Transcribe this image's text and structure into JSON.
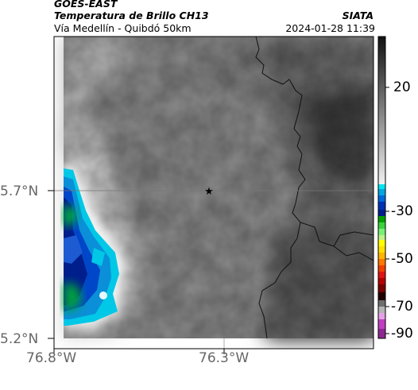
{
  "header": {
    "satellite": "GOES-EAST",
    "product": "Temperatura de Brillo CH13",
    "region": "Vía Medellín - Quibdó 50km",
    "org": "SIATA",
    "datetime": "2024-01-28 11:39"
  },
  "map": {
    "marker": "star-icon",
    "lat_labels": [
      "5.7°N",
      "5.2°N"
    ],
    "lon_labels": [
      "76.8°W",
      "76.3°W"
    ]
  },
  "colorbar": {
    "ticks": [
      "20",
      "-30",
      "-50",
      "-70",
      "-90"
    ]
  },
  "colors": {
    "cloud_gray": "#8c8c8c",
    "warm_land": "#5a5a5a",
    "cold_white": "#ffffff",
    "cyan": "#00c8e6",
    "blue": "#0046c8",
    "navy": "#001e8c",
    "green": "#00b43c",
    "yellow": "#ffff00",
    "red": "#e01414",
    "magenta": "#c040c0"
  }
}
